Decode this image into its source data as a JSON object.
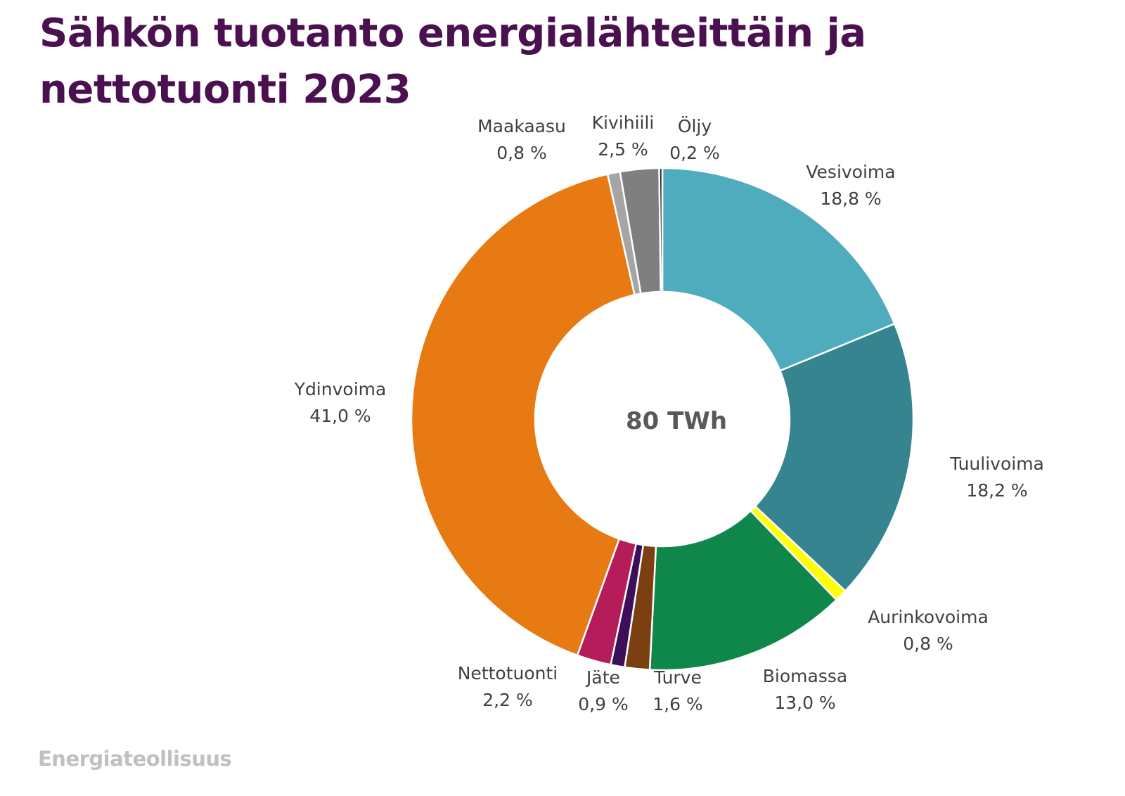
{
  "colors": {
    "title": "#4a1050",
    "label_text": "#404040",
    "center_text": "#595959",
    "logo_text": "#c0c0c0",
    "separator": "#ffffff"
  },
  "chart_data": {
    "type": "pie",
    "title_lines": [
      "Sähkön tuotanto energialähteittäin ja",
      "nettotuonti 2023"
    ],
    "center_label": "80 TWh",
    "unit": "%",
    "slices": [
      {
        "name": "Vesivoima",
        "value": 18.8,
        "value_label": "18,8 %",
        "color": "#4facbd"
      },
      {
        "name": "Tuulivoima",
        "value": 18.2,
        "value_label": "18,2 %",
        "color": "#368490"
      },
      {
        "name": "Aurinkovoima",
        "value": 0.8,
        "value_label": "0,8 %",
        "color": "#ffff00"
      },
      {
        "name": "Biomassa",
        "value": 13.0,
        "value_label": "13,0 %",
        "color": "#10874a"
      },
      {
        "name": "Turve",
        "value": 1.6,
        "value_label": "1,6 %",
        "color": "#7b3f12"
      },
      {
        "name": "Jäte",
        "value": 0.9,
        "value_label": "0,9 %",
        "color": "#3d0f58"
      },
      {
        "name": "Nettotuonti",
        "value": 2.2,
        "value_label": "2,2 %",
        "color": "#b41c5a"
      },
      {
        "name": "Ydinvoima",
        "value": 41.0,
        "value_label": "41,0 %",
        "color": "#e87a13"
      },
      {
        "name": "Maakaasu",
        "value": 0.8,
        "value_label": "0,8 %",
        "color": "#a5a5a5"
      },
      {
        "name": "Kivihiili",
        "value": 2.5,
        "value_label": "2,5 %",
        "color": "#7f7f7f"
      },
      {
        "name": "Öljy",
        "value": 0.2,
        "value_label": "0,2 %",
        "color": "#262626"
      }
    ]
  },
  "footer": {
    "logo_text": "Energiateollisuus"
  }
}
